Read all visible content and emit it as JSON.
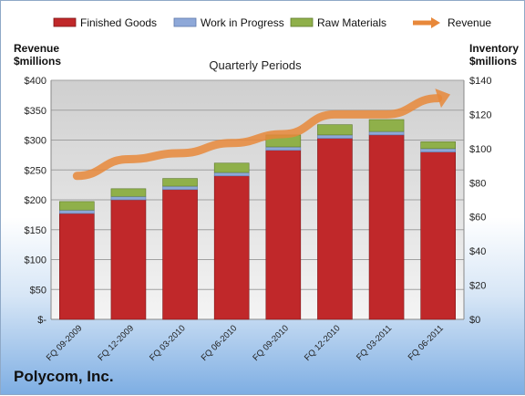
{
  "chart_data": {
    "type": "bar",
    "title": "Quarterly Periods",
    "company": "Polycom, Inc.",
    "left_axis_label": [
      "Revenue",
      "$millions"
    ],
    "right_axis_label": [
      "Inventory",
      "$millions"
    ],
    "left_ylim": [
      0,
      400
    ],
    "right_ylim": [
      0,
      140
    ],
    "left_ticks": [
      "$-",
      "$50",
      "$100",
      "$150",
      "$200",
      "$250",
      "$300",
      "$350",
      "$400"
    ],
    "right_ticks": [
      "$0",
      "$20",
      "$40",
      "$60",
      "$80",
      "$100",
      "$120",
      "$140"
    ],
    "categories": [
      "FQ 09-2009",
      "FQ 12-2009",
      "FQ 03-2010",
      "FQ 06-2010",
      "FQ 09-2010",
      "FQ 12-2010",
      "FQ 03-2011",
      "FQ 06-2011"
    ],
    "stacked": true,
    "grid": true,
    "legend_position": "top",
    "series": [
      {
        "name": "Finished Goods",
        "axis": "right",
        "color": "#c0282a",
        "values": [
          62,
          70,
          76,
          84,
          99,
          106,
          108,
          98
        ]
      },
      {
        "name": "Work in Progress",
        "axis": "right",
        "color": "#8ea8d8",
        "values": [
          2,
          2,
          2,
          2,
          2,
          2,
          2,
          2
        ]
      },
      {
        "name": "Raw Materials",
        "axis": "right",
        "color": "#8fb04a",
        "values": [
          5,
          4.5,
          4.5,
          5.5,
          7,
          6,
          7,
          4
        ]
      },
      {
        "name": "Revenue",
        "axis": "left",
        "type": "line",
        "color": "#e8883a",
        "values": [
          240,
          268,
          278,
          295,
          310,
          343,
          343,
          370
        ]
      }
    ]
  }
}
